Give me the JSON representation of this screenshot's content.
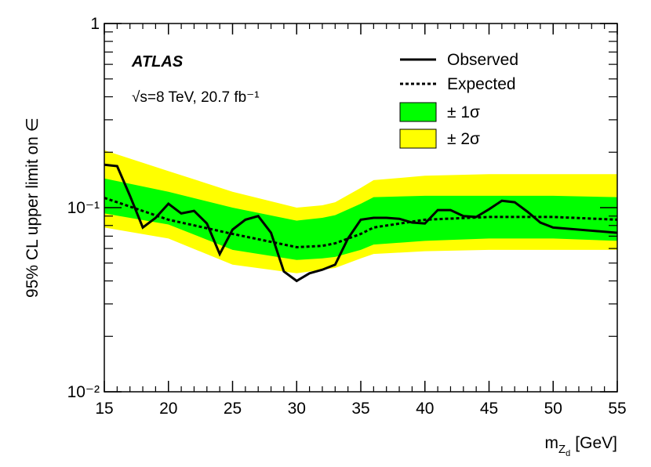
{
  "chart_data": {
    "type": "line",
    "y_label": "95% CL upper limit on ∈",
    "x_label": {
      "main": "m",
      "sub": "Z",
      "subsub": "d",
      "unit": "[GeV]"
    },
    "annotations": [
      "ATLAS",
      "√s=8 TeV, 20.7 fb⁻¹"
    ],
    "xlim": [
      15,
      55
    ],
    "xticks": [
      15,
      20,
      25,
      30,
      35,
      40,
      45,
      50,
      55
    ],
    "ylim": [
      0.01,
      1
    ],
    "yticks": [
      {
        "value": 0.01,
        "label": "10⁻²"
      },
      {
        "value": 0.1,
        "label": "10⁻¹"
      },
      1
    ],
    "log_y": true,
    "bands": [
      {
        "name": "± 2σ",
        "color": "#ffff00",
        "x": [
          15,
          20,
          25,
          30,
          32,
          33,
          35,
          36,
          40,
          45,
          50,
          55
        ],
        "lower": [
          0.078,
          0.068,
          0.049,
          0.044,
          0.046,
          0.047,
          0.053,
          0.056,
          0.058,
          0.059,
          0.059,
          0.059
        ],
        "upper": [
          0.205,
          0.158,
          0.122,
          0.1,
          0.103,
          0.107,
          0.128,
          0.141,
          0.149,
          0.152,
          0.152,
          0.152
        ]
      },
      {
        "name": "± 1σ",
        "color": "#00ff00",
        "x": [
          15,
          20,
          25,
          30,
          32,
          33,
          35,
          36,
          40,
          45,
          50,
          55
        ],
        "lower": [
          0.093,
          0.081,
          0.059,
          0.052,
          0.053,
          0.054,
          0.059,
          0.063,
          0.066,
          0.068,
          0.068,
          0.066
        ],
        "upper": [
          0.144,
          0.122,
          0.1,
          0.085,
          0.088,
          0.091,
          0.105,
          0.114,
          0.116,
          0.116,
          0.116,
          0.114
        ]
      }
    ],
    "series": [
      {
        "name": "Observed",
        "color": "#000000",
        "dash": "solid",
        "x": [
          15,
          16,
          17,
          18,
          19,
          20,
          21,
          22,
          23,
          24,
          25,
          26,
          27,
          28,
          29,
          30,
          31,
          32,
          33,
          34,
          35,
          36,
          37,
          38,
          39,
          40,
          41,
          42,
          43,
          44,
          45,
          46,
          47,
          48,
          49,
          50,
          55
        ],
        "values": [
          0.171,
          0.168,
          0.116,
          0.078,
          0.088,
          0.105,
          0.093,
          0.096,
          0.082,
          0.056,
          0.076,
          0.086,
          0.09,
          0.073,
          0.045,
          0.04,
          0.044,
          0.046,
          0.049,
          0.068,
          0.086,
          0.088,
          0.088,
          0.087,
          0.083,
          0.082,
          0.097,
          0.097,
          0.09,
          0.089,
          0.098,
          0.109,
          0.107,
          0.095,
          0.083,
          0.078,
          0.073
        ]
      },
      {
        "name": "Expected",
        "color": "#000000",
        "dash": "dotted",
        "x": [
          15,
          20,
          25,
          30,
          32,
          33,
          35,
          36,
          40,
          45,
          50,
          55
        ],
        "values": [
          0.113,
          0.086,
          0.072,
          0.061,
          0.062,
          0.064,
          0.072,
          0.078,
          0.086,
          0.089,
          0.089,
          0.086
        ]
      }
    ]
  }
}
